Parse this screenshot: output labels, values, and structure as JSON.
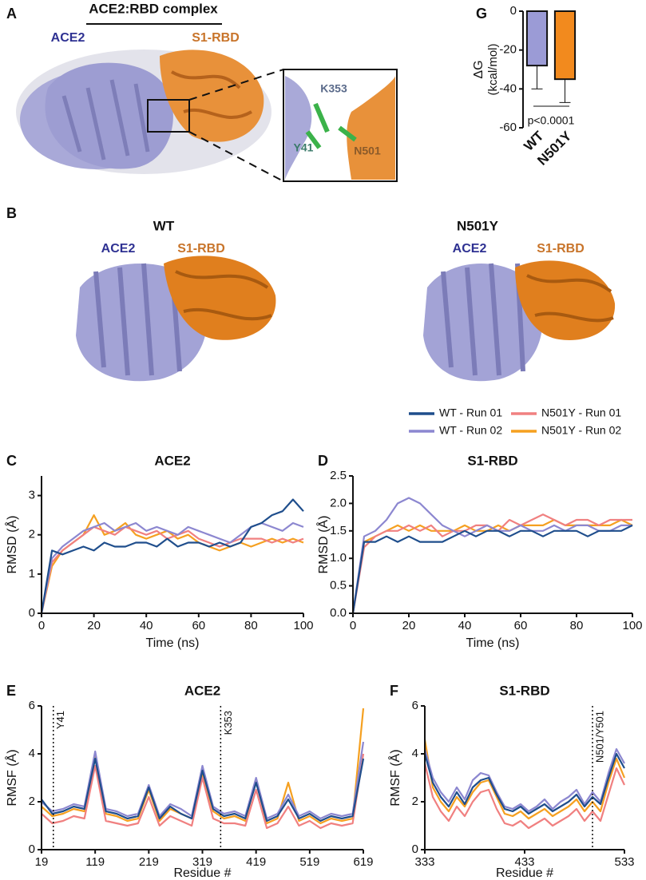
{
  "panel_a": {
    "letter": "A",
    "title": "ACE2:RBD complex",
    "ace2": "ACE2",
    "rbd": "S1-RBD",
    "residues": [
      "K353",
      "Y41",
      "N501"
    ]
  },
  "panel_b": {
    "letter": "B",
    "titles": [
      "WT",
      "N501Y"
    ],
    "ace2": "ACE2",
    "rbd": "S1-RBD"
  },
  "chart_data": [
    {
      "type": "bar",
      "panel": "G",
      "ylabel": "ΔG",
      "ylabel_unit": "(kcal/mol)",
      "categories": [
        "WT",
        "N501Y"
      ],
      "values": [
        -28,
        -35
      ],
      "errors": [
        12,
        12
      ],
      "colors": [
        "#9b9bd6",
        "#f28a1e"
      ],
      "ylim": [
        -60,
        0
      ],
      "yticks": [
        -60,
        -40,
        -20,
        0
      ],
      "annotation": "p<0.0001"
    },
    {
      "type": "line",
      "panel": "C",
      "title": "ACE2",
      "xlabel": "Time (ns)",
      "ylabel": "RMSD (Å)",
      "xlim": [
        0,
        100
      ],
      "xticks": [
        0,
        20,
        40,
        60,
        80,
        100
      ],
      "ylim": [
        0,
        3.5
      ],
      "yticks": [
        0,
        1,
        2,
        3
      ],
      "x": [
        0,
        4,
        8,
        12,
        16,
        20,
        24,
        28,
        32,
        36,
        40,
        44,
        48,
        52,
        56,
        60,
        64,
        68,
        72,
        76,
        80,
        84,
        88,
        92,
        96,
        100
      ],
      "series": [
        {
          "name": "WT - Run 01",
          "color": "#1f4e8c",
          "values": [
            0,
            1.6,
            1.5,
            1.6,
            1.7,
            1.6,
            1.8,
            1.7,
            1.7,
            1.8,
            1.8,
            1.7,
            1.9,
            1.7,
            1.8,
            1.8,
            1.7,
            1.8,
            1.7,
            1.8,
            2.2,
            2.3,
            2.5,
            2.6,
            2.9,
            2.6
          ]
        },
        {
          "name": "WT - Run 02",
          "color": "#8c87d0",
          "values": [
            0,
            1.4,
            1.7,
            1.9,
            2.1,
            2.2,
            2.3,
            2.1,
            2.2,
            2.3,
            2.1,
            2.2,
            2.1,
            2.0,
            2.2,
            2.1,
            2.0,
            1.9,
            1.8,
            2.0,
            2.2,
            2.3,
            2.2,
            2.1,
            2.3,
            2.2
          ]
        },
        {
          "name": "N501Y - Run 01",
          "color": "#f08080",
          "values": [
            0,
            1.3,
            1.6,
            1.8,
            2.0,
            2.2,
            2.1,
            2.0,
            2.2,
            2.1,
            2.0,
            2.1,
            1.9,
            2.0,
            2.1,
            1.9,
            1.8,
            1.7,
            1.8,
            1.9,
            1.9,
            1.9,
            1.8,
            1.9,
            1.8,
            1.9
          ]
        },
        {
          "name": "N501Y - Run 02",
          "color": "#f5a020",
          "values": [
            0,
            1.2,
            1.6,
            1.8,
            2.0,
            2.5,
            2.0,
            2.1,
            2.3,
            2.0,
            1.9,
            2.0,
            2.1,
            1.9,
            2.0,
            1.8,
            1.7,
            1.6,
            1.7,
            1.8,
            1.7,
            1.8,
            1.9,
            1.8,
            1.9,
            1.8
          ]
        }
      ]
    },
    {
      "type": "line",
      "panel": "D",
      "title": "S1-RBD",
      "xlabel": "Time (ns)",
      "ylabel": "RMSD (Å)",
      "xlim": [
        0,
        100
      ],
      "xticks": [
        0,
        20,
        40,
        60,
        80,
        100
      ],
      "ylim": [
        0,
        2.5
      ],
      "yticks": [
        {
          "value": 0,
          "label": "0.0"
        },
        0.5,
        {
          "value": 1,
          "label": "1.0"
        },
        1.5,
        {
          "value": 2,
          "label": "2.0"
        },
        2.5
      ],
      "x": [
        0,
        4,
        8,
        12,
        16,
        20,
        24,
        28,
        32,
        36,
        40,
        44,
        48,
        52,
        56,
        60,
        64,
        68,
        72,
        76,
        80,
        84,
        88,
        92,
        96,
        100
      ],
      "series": [
        {
          "color": "#1f4e8c",
          "values": [
            0,
            1.3,
            1.3,
            1.4,
            1.3,
            1.4,
            1.3,
            1.3,
            1.3,
            1.4,
            1.5,
            1.4,
            1.5,
            1.5,
            1.4,
            1.5,
            1.5,
            1.4,
            1.5,
            1.5,
            1.5,
            1.4,
            1.5,
            1.5,
            1.5,
            1.6
          ]
        },
        {
          "color": "#8c87d0",
          "values": [
            0,
            1.4,
            1.5,
            1.7,
            2.0,
            2.1,
            2.0,
            1.8,
            1.6,
            1.5,
            1.4,
            1.5,
            1.6,
            1.5,
            1.5,
            1.6,
            1.5,
            1.5,
            1.6,
            1.5,
            1.6,
            1.6,
            1.5,
            1.5,
            1.6,
            1.6
          ]
        },
        {
          "color": "#f08080",
          "values": [
            0,
            1.2,
            1.4,
            1.5,
            1.5,
            1.6,
            1.5,
            1.6,
            1.4,
            1.5,
            1.5,
            1.6,
            1.6,
            1.5,
            1.7,
            1.6,
            1.7,
            1.8,
            1.7,
            1.6,
            1.7,
            1.7,
            1.6,
            1.7,
            1.7,
            1.7
          ]
        },
        {
          "color": "#f5a020",
          "values": [
            0,
            1.3,
            1.4,
            1.5,
            1.6,
            1.5,
            1.6,
            1.5,
            1.5,
            1.5,
            1.6,
            1.5,
            1.5,
            1.6,
            1.5,
            1.6,
            1.6,
            1.6,
            1.7,
            1.6,
            1.6,
            1.6,
            1.6,
            1.6,
            1.7,
            1.6
          ]
        }
      ]
    },
    {
      "type": "line",
      "panel": "E",
      "title": "ACE2",
      "xlabel": "Residue #",
      "ylabel": "RMSF (Å)",
      "xlim": [
        19,
        619
      ],
      "xticks": [
        19,
        119,
        219,
        319,
        419,
        519,
        619
      ],
      "ylim": [
        0,
        6
      ],
      "yticks": [
        0,
        2,
        4,
        6
      ],
      "vlines": [
        {
          "x": 41,
          "label": "Y41"
        },
        {
          "x": 353,
          "label": "K353"
        }
      ],
      "x": [
        19,
        39,
        59,
        79,
        99,
        119,
        139,
        159,
        179,
        199,
        219,
        239,
        259,
        279,
        299,
        319,
        339,
        359,
        379,
        399,
        419,
        439,
        459,
        479,
        499,
        519,
        539,
        559,
        579,
        599,
        619
      ],
      "series": [
        {
          "color": "#1f4e8c",
          "values": [
            2.1,
            1.5,
            1.6,
            1.8,
            1.7,
            3.8,
            1.6,
            1.5,
            1.3,
            1.4,
            2.6,
            1.3,
            1.8,
            1.5,
            1.3,
            3.3,
            1.7,
            1.4,
            1.5,
            1.3,
            2.8,
            1.2,
            1.4,
            2.1,
            1.3,
            1.5,
            1.2,
            1.4,
            1.3,
            1.4,
            3.8
          ]
        },
        {
          "color": "#8c87d0",
          "values": [
            2.0,
            1.6,
            1.7,
            1.9,
            1.8,
            4.1,
            1.7,
            1.6,
            1.4,
            1.5,
            2.7,
            1.4,
            1.9,
            1.7,
            1.4,
            3.5,
            1.8,
            1.5,
            1.6,
            1.4,
            3.0,
            1.3,
            1.5,
            2.3,
            1.4,
            1.6,
            1.3,
            1.5,
            1.4,
            1.5,
            4.5
          ]
        },
        {
          "color": "#f08080",
          "values": [
            1.5,
            1.1,
            1.2,
            1.4,
            1.3,
            3.5,
            1.2,
            1.1,
            1.0,
            1.1,
            2.2,
            1.0,
            1.4,
            1.2,
            1.0,
            3.0,
            1.3,
            1.1,
            1.1,
            1.0,
            2.5,
            0.9,
            1.1,
            1.8,
            1.0,
            1.2,
            0.9,
            1.1,
            1.0,
            1.1,
            4.0
          ]
        },
        {
          "color": "#f5a020",
          "values": [
            1.8,
            1.4,
            1.5,
            1.7,
            1.6,
            3.9,
            1.5,
            1.4,
            1.2,
            1.3,
            2.5,
            1.2,
            1.7,
            1.5,
            1.3,
            3.2,
            1.6,
            1.3,
            1.4,
            1.2,
            2.9,
            1.1,
            1.3,
            2.8,
            1.2,
            1.4,
            1.1,
            1.3,
            1.2,
            1.3,
            5.9
          ]
        }
      ]
    },
    {
      "type": "line",
      "panel": "F",
      "title": "S1-RBD",
      "xlabel": "Residue #",
      "ylabel": "RMSF (Å)",
      "xlim": [
        333,
        533
      ],
      "xticks": [
        333,
        433,
        533
      ],
      "ylim": [
        0,
        6
      ],
      "yticks": [
        0,
        2,
        4,
        6
      ],
      "vlines": [
        {
          "x": 501,
          "label": "N501/Y501"
        }
      ],
      "x": [
        333,
        341,
        349,
        357,
        365,
        373,
        381,
        389,
        397,
        405,
        413,
        421,
        429,
        437,
        445,
        453,
        461,
        469,
        477,
        485,
        493,
        501,
        509,
        517,
        525,
        533
      ],
      "series": [
        {
          "color": "#1f4e8c",
          "values": [
            4.0,
            2.8,
            2.2,
            1.8,
            2.4,
            1.9,
            2.6,
            2.9,
            3.0,
            2.3,
            1.7,
            1.6,
            1.8,
            1.5,
            1.7,
            1.9,
            1.6,
            1.8,
            2.0,
            2.3,
            1.8,
            2.2,
            1.9,
            3.0,
            4.0,
            3.4
          ]
        },
        {
          "color": "#8c87d0",
          "values": [
            4.2,
            3.0,
            2.4,
            2.0,
            2.6,
            2.1,
            2.9,
            3.2,
            3.1,
            2.4,
            1.8,
            1.7,
            1.9,
            1.6,
            1.8,
            2.1,
            1.7,
            2.0,
            2.2,
            2.5,
            1.9,
            2.4,
            2.0,
            3.2,
            4.2,
            3.6
          ]
        },
        {
          "color": "#f08080",
          "values": [
            3.6,
            2.2,
            1.6,
            1.2,
            1.8,
            1.4,
            2.0,
            2.4,
            2.5,
            1.7,
            1.1,
            1.0,
            1.2,
            0.9,
            1.1,
            1.3,
            1.0,
            1.2,
            1.4,
            1.7,
            1.2,
            1.6,
            1.2,
            2.3,
            3.4,
            2.7
          ]
        },
        {
          "color": "#f5a020",
          "values": [
            4.6,
            2.6,
            2.0,
            1.6,
            2.2,
            1.8,
            2.4,
            2.8,
            2.9,
            2.2,
            1.5,
            1.4,
            1.6,
            1.3,
            1.5,
            1.7,
            1.4,
            1.6,
            1.8,
            2.1,
            1.6,
            2.0,
            1.6,
            2.8,
            3.8,
            3.0
          ]
        }
      ]
    }
  ]
}
